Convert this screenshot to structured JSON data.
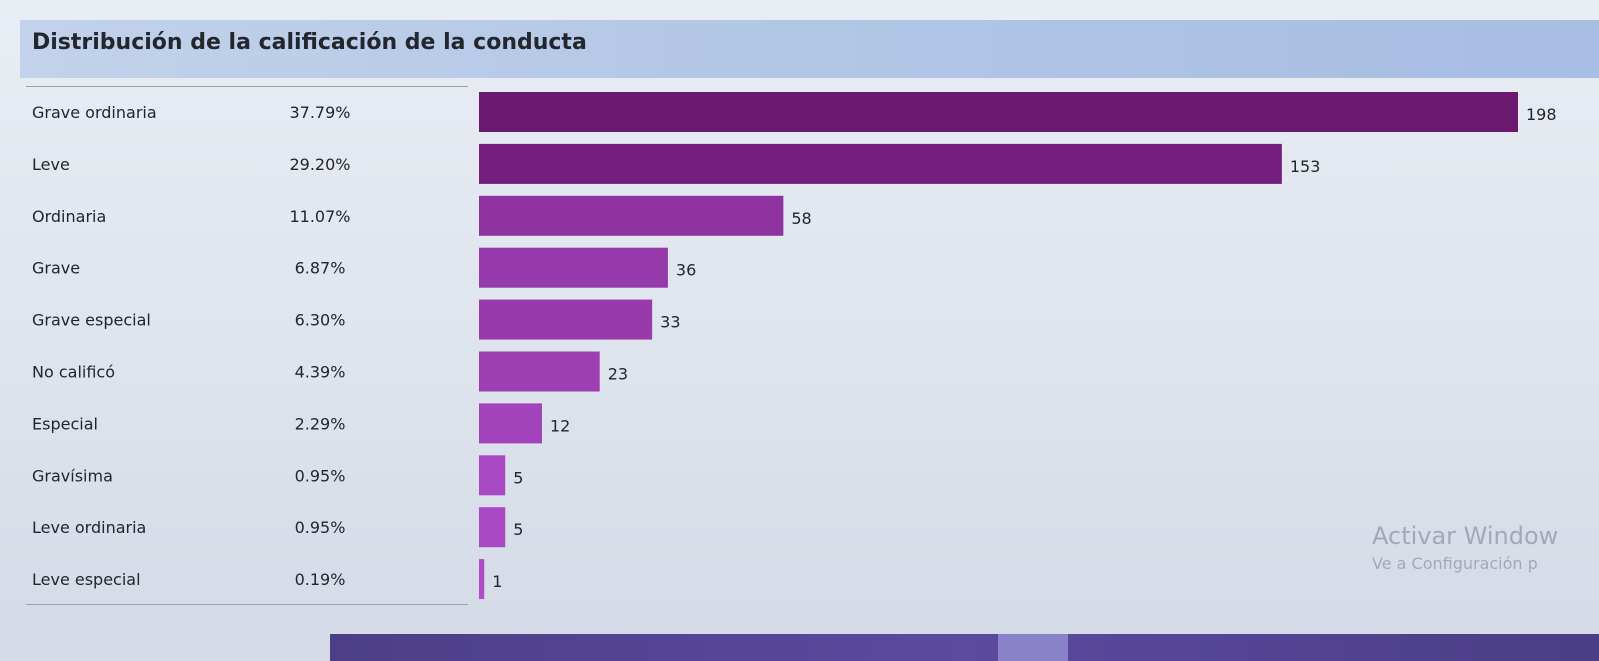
{
  "chart_data": {
    "type": "bar",
    "orientation": "horizontal",
    "title": "Distribución de la calificación de la conducta",
    "categories": [
      "Grave ordinaria",
      "Leve",
      "Ordinaria",
      "Grave",
      "Grave especial",
      "No calificó",
      "Especial",
      "Gravísima",
      "Leve ordinaria",
      "Leve especial"
    ],
    "percentages": [
      "37.79%",
      "29.20%",
      "11.07%",
      "6.87%",
      "6.30%",
      "4.39%",
      "2.29%",
      "0.95%",
      "0.95%",
      "0.19%"
    ],
    "values": [
      198,
      153,
      58,
      36,
      33,
      23,
      12,
      5,
      5,
      1
    ],
    "xlim": [
      0,
      198
    ],
    "grid": false,
    "legend": "none",
    "bar_color_dark": "#6a1870",
    "bar_color_light": "#b34fd0"
  },
  "watermark": {
    "title": "Activar Window",
    "subtitle": "Ve a Configuración p"
  },
  "colors": {
    "header_bar": "#b3c7e6",
    "background": "#dfe5ee",
    "taskbar": "#4c3f86"
  }
}
